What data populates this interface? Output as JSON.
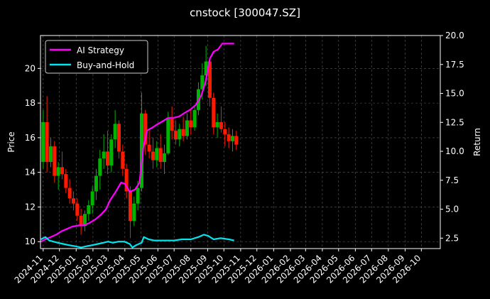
{
  "chart_data": {
    "type": "line",
    "title": "cnstock [300047.SZ]",
    "ylabel_left": "Price",
    "ylabel_right": "Return",
    "ylim_left": [
      9.6,
      21.9
    ],
    "ylim_right": [
      1.6,
      20.0
    ],
    "xlim": [
      "2024-10-27",
      "2026-11-05"
    ],
    "left_ticks": [
      10,
      12,
      14,
      16,
      18,
      20
    ],
    "right_ticks": [
      2.5,
      5.0,
      7.5,
      10.0,
      12.5,
      15.0,
      17.5,
      20.0
    ],
    "x_tick_labels": [
      "2024-11",
      "2024-12",
      "2025-01",
      "2025-02",
      "2025-03",
      "2025-04",
      "2025-05",
      "2025-06",
      "2025-07",
      "2025-08",
      "2025-09",
      "2025-10",
      "2025-11",
      "2025-12",
      "2026-01",
      "2026-02",
      "2026-03",
      "2026-04",
      "2026-05",
      "2026-06",
      "2026-07",
      "2026-08",
      "2026-09",
      "2026-10"
    ],
    "grid": true,
    "legend": {
      "location": "top-left",
      "entries": [
        {
          "label": "AI Strategy",
          "color": "#ff00ff"
        },
        {
          "label": "Buy-and-Hold",
          "color": "#00e5ee"
        }
      ]
    },
    "candle_colors": {
      "up": "#00b400",
      "down": "#ff1a00"
    },
    "price_ohlc_sample": [
      {
        "date": "2024-11-01",
        "open": 14.6,
        "high": 17.6,
        "low": 14.2,
        "close": 16.9
      },
      {
        "date": "2024-11-08",
        "open": 16.9,
        "high": 18.4,
        "low": 14.0,
        "close": 14.6
      },
      {
        "date": "2024-11-15",
        "open": 14.6,
        "high": 16.0,
        "low": 14.3,
        "close": 15.5
      },
      {
        "date": "2024-11-22",
        "open": 15.5,
        "high": 15.8,
        "low": 13.4,
        "close": 13.8
      },
      {
        "date": "2024-11-29",
        "open": 13.8,
        "high": 14.6,
        "low": 13.0,
        "close": 14.3
      },
      {
        "date": "2024-12-06",
        "open": 14.3,
        "high": 15.2,
        "low": 13.6,
        "close": 13.9
      },
      {
        "date": "2024-12-13",
        "open": 13.9,
        "high": 14.2,
        "low": 12.8,
        "close": 13.1
      },
      {
        "date": "2024-12-20",
        "open": 13.1,
        "high": 13.6,
        "low": 12.2,
        "close": 12.5
      },
      {
        "date": "2024-12-27",
        "open": 12.5,
        "high": 12.9,
        "low": 11.8,
        "close": 12.2
      },
      {
        "date": "2025-01-03",
        "open": 12.2,
        "high": 12.5,
        "low": 11.2,
        "close": 11.5
      },
      {
        "date": "2025-01-10",
        "open": 11.5,
        "high": 11.9,
        "low": 10.4,
        "close": 10.9
      },
      {
        "date": "2025-01-17",
        "open": 10.9,
        "high": 11.8,
        "low": 10.6,
        "close": 11.6
      },
      {
        "date": "2025-01-24",
        "open": 11.6,
        "high": 12.4,
        "low": 11.2,
        "close": 12.1
      },
      {
        "date": "2025-01-31",
        "open": 12.1,
        "high": 13.2,
        "low": 11.6,
        "close": 12.9
      },
      {
        "date": "2025-02-07",
        "open": 12.9,
        "high": 14.2,
        "low": 12.4,
        "close": 13.8
      },
      {
        "date": "2025-02-14",
        "open": 13.8,
        "high": 15.3,
        "low": 13.0,
        "close": 14.8
      },
      {
        "date": "2025-02-21",
        "open": 14.8,
        "high": 16.2,
        "low": 14.2,
        "close": 15.2
      },
      {
        "date": "2025-02-28",
        "open": 15.2,
        "high": 16.4,
        "low": 13.9,
        "close": 14.4
      },
      {
        "date": "2025-03-07",
        "open": 14.4,
        "high": 16.2,
        "low": 14.0,
        "close": 15.9
      },
      {
        "date": "2025-03-14",
        "open": 15.9,
        "high": 17.6,
        "low": 15.4,
        "close": 16.8
      },
      {
        "date": "2025-03-21",
        "open": 16.8,
        "high": 17.0,
        "low": 14.8,
        "close": 15.2
      },
      {
        "date": "2025-03-28",
        "open": 15.2,
        "high": 15.6,
        "low": 13.8,
        "close": 14.2
      },
      {
        "date": "2025-04-04",
        "open": 14.2,
        "high": 14.5,
        "low": 12.5,
        "close": 12.9
      },
      {
        "date": "2025-04-11",
        "open": 12.9,
        "high": 13.2,
        "low": 10.2,
        "close": 11.2
      },
      {
        "date": "2025-04-18",
        "open": 11.2,
        "high": 12.6,
        "low": 10.9,
        "close": 12.2
      },
      {
        "date": "2025-04-25",
        "open": 12.2,
        "high": 13.5,
        "low": 11.8,
        "close": 13.1
      },
      {
        "date": "2025-05-02",
        "open": 13.1,
        "high": 18.6,
        "low": 12.9,
        "close": 17.4
      },
      {
        "date": "2025-05-09",
        "open": 17.4,
        "high": 17.6,
        "low": 15.0,
        "close": 15.6
      },
      {
        "date": "2025-05-16",
        "open": 15.6,
        "high": 16.4,
        "low": 14.8,
        "close": 15.2
      },
      {
        "date": "2025-05-23",
        "open": 15.2,
        "high": 16.0,
        "low": 14.2,
        "close": 14.7
      },
      {
        "date": "2025-05-30",
        "open": 14.7,
        "high": 15.8,
        "low": 14.3,
        "close": 15.4
      },
      {
        "date": "2025-06-06",
        "open": 15.4,
        "high": 16.2,
        "low": 14.2,
        "close": 14.6
      },
      {
        "date": "2025-06-13",
        "open": 14.6,
        "high": 15.6,
        "low": 13.9,
        "close": 15.1
      },
      {
        "date": "2025-06-20",
        "open": 15.1,
        "high": 17.5,
        "low": 15.0,
        "close": 17.1
      },
      {
        "date": "2025-06-27",
        "open": 17.1,
        "high": 17.8,
        "low": 15.9,
        "close": 16.4
      },
      {
        "date": "2025-07-04",
        "open": 16.4,
        "high": 17.0,
        "low": 15.6,
        "close": 15.9
      },
      {
        "date": "2025-07-11",
        "open": 15.9,
        "high": 16.8,
        "low": 15.5,
        "close": 16.5
      },
      {
        "date": "2025-07-18",
        "open": 16.5,
        "high": 17.2,
        "low": 15.8,
        "close": 16.1
      },
      {
        "date": "2025-07-25",
        "open": 16.1,
        "high": 17.4,
        "low": 15.9,
        "close": 17.0
      },
      {
        "date": "2025-08-01",
        "open": 17.0,
        "high": 17.6,
        "low": 16.2,
        "close": 16.6
      },
      {
        "date": "2025-08-08",
        "open": 16.6,
        "high": 17.9,
        "low": 16.4,
        "close": 17.6
      },
      {
        "date": "2025-08-15",
        "open": 17.6,
        "high": 19.2,
        "low": 17.3,
        "close": 18.8
      },
      {
        "date": "2025-08-22",
        "open": 18.8,
        "high": 20.3,
        "low": 18.2,
        "close": 19.6
      },
      {
        "date": "2025-08-29",
        "open": 19.6,
        "high": 21.3,
        "low": 19.0,
        "close": 20.4
      },
      {
        "date": "2025-09-05",
        "open": 20.4,
        "high": 20.6,
        "low": 17.8,
        "close": 18.3
      },
      {
        "date": "2025-09-12",
        "open": 18.3,
        "high": 18.6,
        "low": 16.2,
        "close": 16.6
      },
      {
        "date": "2025-09-19",
        "open": 16.6,
        "high": 17.4,
        "low": 16.0,
        "close": 16.9
      },
      {
        "date": "2025-09-26",
        "open": 16.9,
        "high": 17.8,
        "low": 16.3,
        "close": 16.5
      },
      {
        "date": "2025-10-03",
        "open": 16.5,
        "high": 16.9,
        "low": 15.5,
        "close": 16.2
      },
      {
        "date": "2025-10-10",
        "open": 16.2,
        "high": 16.6,
        "low": 15.4,
        "close": 15.8
      },
      {
        "date": "2025-10-17",
        "open": 15.8,
        "high": 16.5,
        "low": 15.2,
        "close": 16.1
      },
      {
        "date": "2025-10-24",
        "open": 16.1,
        "high": 16.4,
        "low": 15.3,
        "close": 15.6
      }
    ],
    "series": [
      {
        "name": "AI Strategy",
        "axis": "right",
        "color": "#ff00ff",
        "points": [
          [
            "2024-10-28",
            2.2
          ],
          [
            "2024-11-05",
            2.4
          ],
          [
            "2024-11-15",
            2.6
          ],
          [
            "2024-11-25",
            2.8
          ],
          [
            "2024-12-05",
            3.1
          ],
          [
            "2024-12-15",
            3.3
          ],
          [
            "2024-12-25",
            3.5
          ],
          [
            "2025-01-05",
            3.6
          ],
          [
            "2025-01-15",
            3.6
          ],
          [
            "2025-01-25",
            3.8
          ],
          [
            "2025-02-05",
            4.1
          ],
          [
            "2025-02-15",
            4.5
          ],
          [
            "2025-02-25",
            5.0
          ],
          [
            "2025-03-05",
            5.8
          ],
          [
            "2025-03-15",
            6.5
          ],
          [
            "2025-03-25",
            7.3
          ],
          [
            "2025-04-01",
            7.2
          ],
          [
            "2025-04-10",
            6.5
          ],
          [
            "2025-04-20",
            6.7
          ],
          [
            "2025-04-28",
            7.3
          ],
          [
            "2025-05-05",
            10.3
          ],
          [
            "2025-05-12",
            11.8
          ],
          [
            "2025-05-20",
            12.0
          ],
          [
            "2025-05-30",
            12.3
          ],
          [
            "2025-06-10",
            12.6
          ],
          [
            "2025-06-20",
            12.9
          ],
          [
            "2025-07-01",
            12.9
          ],
          [
            "2025-07-10",
            13.0
          ],
          [
            "2025-07-20",
            13.3
          ],
          [
            "2025-07-31",
            13.6
          ],
          [
            "2025-08-10",
            14.0
          ],
          [
            "2025-08-20",
            14.8
          ],
          [
            "2025-08-28",
            16.0
          ],
          [
            "2025-09-05",
            18.0
          ],
          [
            "2025-09-12",
            18.6
          ],
          [
            "2025-09-20",
            18.8
          ],
          [
            "2025-09-28",
            19.3
          ],
          [
            "2025-10-10",
            19.3
          ],
          [
            "2025-10-20",
            19.3
          ]
        ]
      },
      {
        "name": "Buy-and-Hold",
        "axis": "right",
        "color": "#00e5ee",
        "points": [
          [
            "2024-10-28",
            2.4
          ],
          [
            "2024-11-05",
            2.6
          ],
          [
            "2024-11-12",
            2.3
          ],
          [
            "2024-11-20",
            2.2
          ],
          [
            "2024-11-28",
            2.1
          ],
          [
            "2024-12-08",
            2.0
          ],
          [
            "2024-12-18",
            1.9
          ],
          [
            "2024-12-30",
            1.8
          ],
          [
            "2025-01-10",
            1.7
          ],
          [
            "2025-01-20",
            1.8
          ],
          [
            "2025-01-31",
            1.9
          ],
          [
            "2025-02-10",
            2.0
          ],
          [
            "2025-02-20",
            2.1
          ],
          [
            "2025-03-01",
            2.2
          ],
          [
            "2025-03-10",
            2.1
          ],
          [
            "2025-03-20",
            2.2
          ],
          [
            "2025-03-31",
            2.2
          ],
          [
            "2025-04-10",
            2.0
          ],
          [
            "2025-04-15",
            1.7
          ],
          [
            "2025-04-22",
            1.9
          ],
          [
            "2025-05-02",
            2.1
          ],
          [
            "2025-05-06",
            2.6
          ],
          [
            "2025-05-15",
            2.4
          ],
          [
            "2025-05-25",
            2.3
          ],
          [
            "2025-06-05",
            2.3
          ],
          [
            "2025-06-20",
            2.3
          ],
          [
            "2025-07-01",
            2.3
          ],
          [
            "2025-07-15",
            2.4
          ],
          [
            "2025-08-01",
            2.4
          ],
          [
            "2025-08-15",
            2.6
          ],
          [
            "2025-08-25",
            2.8
          ],
          [
            "2025-09-02",
            2.7
          ],
          [
            "2025-09-12",
            2.4
          ],
          [
            "2025-09-25",
            2.5
          ],
          [
            "2025-10-10",
            2.4
          ],
          [
            "2025-10-20",
            2.3
          ]
        ]
      }
    ]
  }
}
